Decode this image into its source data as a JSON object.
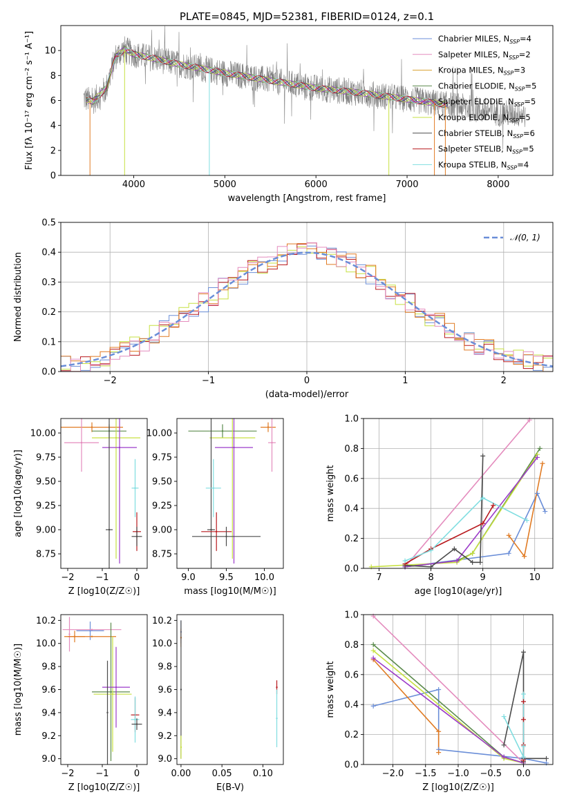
{
  "figure_title": "PLATE=0845, MJD=52381, FIBERID=0124, z=0.1",
  "colors": {
    "Chabrier MILES": "#6a8ed8",
    "Salpeter MILES": "#e48bbd",
    "Kroupa MILES": "#d9a12b",
    "Chabrier ELODIE": "#5b8a4c",
    "Salpeter ELODIE": "#9b3ac9",
    "Kroupa ELODIE": "#c6e040",
    "Chabrier STELIB": "#4a4a4a",
    "Salpeter STELIB": "#b8191d",
    "Kroupa STELIB": "#7fdde0",
    "data": "#808080",
    "orange": "#e07a22",
    "normal": "#6a8ed8"
  },
  "chart_data": [
    {
      "id": "spectrum",
      "type": "line",
      "title": "PLATE=0845, MJD=52381, FIBERID=0124, z=0.1",
      "xlabel": "wavelength [Angstrom, rest frame]",
      "ylabel": "Flux [fλ 10⁻¹⁷ erg cm⁻² s⁻¹ A⁻¹]",
      "xlim": [
        3200,
        8600
      ],
      "ylim": [
        0,
        12
      ],
      "xticks": [
        4000,
        5000,
        6000,
        7000,
        8000
      ],
      "yticks": [
        0,
        2,
        4,
        6,
        8,
        10
      ],
      "legend_position": "top-right",
      "legend": [
        {
          "label": "Chabrier MILES, N",
          "sub": "SSP",
          "tail": "=4",
          "color": "Chabrier MILES"
        },
        {
          "label": "Salpeter MILES, N",
          "sub": "SSP",
          "tail": "=2",
          "color": "Salpeter MILES"
        },
        {
          "label": "Kroupa MILES, N",
          "sub": "SSP",
          "tail": "=3",
          "color": "Kroupa MILES"
        },
        {
          "label": "Chabrier ELODIE, N",
          "sub": "SSP",
          "tail": "=5",
          "color": "Chabrier ELODIE"
        },
        {
          "label": "Salpeter ELODIE, N",
          "sub": "SSP",
          "tail": "=5",
          "color": "Salpeter ELODIE"
        },
        {
          "label": "Kroupa ELODIE, N",
          "sub": "SSP",
          "tail": "=5",
          "color": "Kroupa ELODIE"
        },
        {
          "label": "Chabrier STELIB, N",
          "sub": "SSP",
          "tail": "=6",
          "color": "Chabrier STELIB"
        },
        {
          "label": "Salpeter STELIB, N",
          "sub": "SSP",
          "tail": "=5",
          "color": "Salpeter STELIB"
        },
        {
          "label": "Kroupa STELIB, N",
          "sub": "SSP",
          "tail": "=4",
          "color": "Kroupa STELIB"
        }
      ],
      "continuum": {
        "x": [
          3450,
          3550,
          3700,
          3800,
          3900,
          4000,
          4200,
          4500,
          5000,
          5500,
          6000,
          6500,
          7000,
          7500,
          8000,
          8300
        ],
        "y": [
          6.2,
          5.9,
          7.0,
          9.5,
          10.1,
          9.7,
          9.4,
          8.9,
          8.2,
          7.6,
          7.0,
          6.6,
          6.1,
          5.6,
          5.0,
          4.9
        ]
      },
      "data_range": [
        3450,
        8300
      ],
      "data_noise": 2.2,
      "model_range": [
        3480,
        7450
      ],
      "dips": [
        {
          "x": 3520,
          "color": "orange"
        },
        {
          "x": 3900,
          "color": "Kroupa ELODIE"
        },
        {
          "x": 4830,
          "color": "Kroupa STELIB"
        },
        {
          "x": 6800,
          "color": "Kroupa ELODIE"
        },
        {
          "x": 7300,
          "color": "orange"
        },
        {
          "x": 7420,
          "color": "orange"
        }
      ]
    },
    {
      "id": "residuals",
      "type": "bar",
      "xlabel": "(data-model)/error",
      "ylabel": "Normed distribution",
      "xlim": [
        -2.5,
        2.5
      ],
      "ylim": [
        0,
        0.5
      ],
      "xticks": [
        -2,
        -1,
        0,
        1,
        2
      ],
      "yticks": [
        0.0,
        0.1,
        0.2,
        0.3,
        0.4,
        0.5
      ],
      "bin_width": 0.1,
      "legend_position": "top-right",
      "legend": "𝒩(0, 1)",
      "histograms": [
        "Chabrier MILES",
        "Kroupa ELODIE",
        "Salpeter STELIB",
        "orange",
        "Salpeter MILES"
      ],
      "normal_mean": 0,
      "normal_sigma": 1
    },
    {
      "id": "age_vs_Z",
      "type": "scatter",
      "xlabel": "Z [log10(Z/Z☉)]",
      "ylabel": "age  [log10(age/yr)]",
      "xlim": [
        -2.2,
        0.3
      ],
      "ylim": [
        8.6,
        10.15
      ],
      "xticks": [
        -2,
        -1,
        0
      ],
      "yticks": [
        8.75,
        9.0,
        9.25,
        9.5,
        9.75,
        10.0
      ],
      "points": [
        {
          "x": -1.3,
          "y": 10.06,
          "xerr": 0.9,
          "yerr": 0.05,
          "color": "orange"
        },
        {
          "x": -1.6,
          "y": 9.9,
          "xerr": 0.5,
          "yerr": 0.3,
          "color": "Salpeter MILES"
        },
        {
          "x": -0.8,
          "y": 10.02,
          "xerr": 0.5,
          "yerr": 0.07,
          "color": "Chabrier ELODIE"
        },
        {
          "x": -0.6,
          "y": 9.95,
          "xerr": 0.7,
          "yerr": 1.25,
          "color": "Kroupa ELODIE"
        },
        {
          "x": -0.5,
          "y": 9.85,
          "xerr": 0.5,
          "yerr": 1.2,
          "color": "Salpeter ELODIE"
        },
        {
          "x": -0.8,
          "y": 9.0,
          "xerr": 0.1,
          "yerr": 1.2,
          "color": "Chabrier STELIB"
        },
        {
          "x": 0.0,
          "y": 8.98,
          "xerr": 0.12,
          "yerr": 0.2,
          "color": "Salpeter STELIB"
        },
        {
          "x": -0.05,
          "y": 9.43,
          "xerr": 0.1,
          "yerr": 0.3,
          "color": "Kroupa STELIB"
        },
        {
          "x": 0.0,
          "y": 8.93,
          "xerr": 0.15,
          "yerr": 0.1,
          "color": "Chabrier STELIB"
        }
      ]
    },
    {
      "id": "age_vs_mass",
      "type": "scatter",
      "xlabel": "mass [log10(M/M☉)]",
      "ylabel": "",
      "xlim": [
        8.85,
        10.25
      ],
      "ylim": [
        8.6,
        10.15
      ],
      "xticks": [
        9.0,
        9.5,
        10.0
      ],
      "yticks": [
        8.75,
        9.0,
        9.25,
        9.5,
        9.75,
        10.0
      ],
      "points": [
        {
          "x": 10.05,
          "y": 10.06,
          "xerr": 0.1,
          "yerr": 0.05,
          "color": "orange"
        },
        {
          "x": 10.1,
          "y": 9.9,
          "xerr": 0.05,
          "yerr": 0.3,
          "color": "Salpeter MILES"
        },
        {
          "x": 9.45,
          "y": 10.02,
          "xerr": 0.45,
          "yerr": 0.07,
          "color": "Chabrier ELODIE"
        },
        {
          "x": 9.58,
          "y": 9.95,
          "xerr": 0.3,
          "yerr": 1.25,
          "color": "Kroupa ELODIE"
        },
        {
          "x": 9.6,
          "y": 9.85,
          "xerr": 0.25,
          "yerr": 1.2,
          "color": "Salpeter ELODIE"
        },
        {
          "x": 9.3,
          "y": 9.0,
          "xerr": 0.05,
          "yerr": 1.2,
          "color": "Chabrier STELIB"
        },
        {
          "x": 9.37,
          "y": 8.98,
          "xerr": 0.2,
          "yerr": 0.2,
          "color": "Salpeter STELIB"
        },
        {
          "x": 9.33,
          "y": 9.43,
          "xerr": 0.1,
          "yerr": 0.3,
          "color": "Kroupa STELIB"
        },
        {
          "x": 9.5,
          "y": 8.93,
          "xerr": 0.45,
          "yerr": 0.1,
          "color": "Chabrier STELIB"
        }
      ]
    },
    {
      "id": "mass_weight_vs_age",
      "type": "line",
      "xlabel": "age  [log10(age/yr)]",
      "ylabel": "mass weight",
      "xlim": [
        6.7,
        10.35
      ],
      "ylim": [
        0,
        1.0
      ],
      "xticks": [
        7,
        8,
        9,
        10
      ],
      "yticks": [
        0.0,
        0.2,
        0.4,
        0.6,
        0.8,
        1.0
      ],
      "series": [
        {
          "color": "Chabrier MILES",
          "x": [
            7.5,
            9.5,
            10.05,
            10.2
          ],
          "y": [
            0.01,
            0.1,
            0.5,
            0.38
          ]
        },
        {
          "color": "Salpeter MILES",
          "x": [
            7.5,
            9.9
          ],
          "y": [
            0.01,
            0.99
          ]
        },
        {
          "color": "orange",
          "x": [
            9.5,
            9.8,
            10.15
          ],
          "y": [
            0.22,
            0.08,
            0.7
          ]
        },
        {
          "color": "Chabrier ELODIE",
          "x": [
            7.5,
            8.5,
            8.8,
            10.1
          ],
          "y": [
            0.01,
            0.05,
            0.1,
            0.8
          ]
        },
        {
          "color": "Kroupa ELODIE",
          "x": [
            6.85,
            8.5,
            8.8,
            10.05
          ],
          "y": [
            0.01,
            0.04,
            0.1,
            0.76
          ]
        },
        {
          "color": "Salpeter ELODIE",
          "x": [
            7.5,
            8.5,
            10.05
          ],
          "y": [
            0.01,
            0.05,
            0.74
          ]
        },
        {
          "color": "Chabrier STELIB",
          "x": [
            7.5,
            8.0,
            8.45,
            8.8,
            8.95,
            9.0
          ],
          "y": [
            0.02,
            0.01,
            0.13,
            0.04,
            0.04,
            0.75
          ]
        },
        {
          "color": "Salpeter STELIB",
          "x": [
            7.5,
            8.0,
            9.0,
            9.2
          ],
          "y": [
            0.03,
            0.13,
            0.3,
            0.42
          ]
        },
        {
          "color": "Kroupa STELIB",
          "x": [
            7.5,
            8.0,
            9.0,
            9.85
          ],
          "y": [
            0.05,
            0.12,
            0.47,
            0.32
          ]
        }
      ]
    },
    {
      "id": "mass_vs_Z",
      "type": "scatter",
      "xlabel": "Z [log10(Z/Z☉)]",
      "ylabel": "mass [log10(M/M☉)]",
      "xlim": [
        -2.2,
        0.3
      ],
      "ylim": [
        8.95,
        10.25
      ],
      "xticks": [
        -2,
        -1,
        0
      ],
      "yticks": [
        9.0,
        9.2,
        9.4,
        9.6,
        9.8,
        10.0,
        10.2
      ],
      "points": [
        {
          "x": -1.35,
          "y": 10.11,
          "xerr": 0.4,
          "yerr": 0.08,
          "color": "Chabrier MILES"
        },
        {
          "x": -1.3,
          "y": 10.12,
          "xerr": 0.85,
          "yerr": 0.0,
          "color": "Salpeter MILES"
        },
        {
          "x": -1.95,
          "y": 10.08,
          "xerr": 0.0,
          "yerr": 0.15,
          "color": "Salpeter MILES"
        },
        {
          "x": -1.8,
          "y": 10.06,
          "xerr": 0.3,
          "yerr": 0.05,
          "color": "orange"
        },
        {
          "x": -1.3,
          "y": 10.06,
          "xerr": 0.7,
          "yerr": 0.0,
          "color": "orange"
        },
        {
          "x": -0.75,
          "y": 9.58,
          "xerr": 0.55,
          "yerr": 0.6,
          "color": "Chabrier ELODIE"
        },
        {
          "x": -0.7,
          "y": 9.56,
          "xerr": 0.55,
          "yerr": 0.5,
          "color": "Kroupa ELODIE"
        },
        {
          "x": -0.6,
          "y": 9.62,
          "xerr": 0.4,
          "yerr": 0.35,
          "color": "Salpeter ELODIE"
        },
        {
          "x": -0.85,
          "y": 9.4,
          "xerr": 0.0,
          "yerr": 0.45,
          "color": "Chabrier STELIB"
        },
        {
          "x": -0.05,
          "y": 9.38,
          "xerr": 0.12,
          "yerr": 0.15,
          "color": "Salpeter STELIB"
        },
        {
          "x": -0.05,
          "y": 9.34,
          "xerr": 0.12,
          "yerr": 0.2,
          "color": "Kroupa STELIB"
        },
        {
          "x": 0.0,
          "y": 9.3,
          "xerr": 0.15,
          "yerr": 0.05,
          "color": "Chabrier STELIB"
        }
      ]
    },
    {
      "id": "mass_vs_EBV",
      "type": "scatter",
      "xlabel": "E(B-V)",
      "ylabel": "",
      "xlim": [
        -0.005,
        0.125
      ],
      "ylim": [
        8.95,
        10.25
      ],
      "xticks": [
        0.0,
        0.05,
        0.1
      ],
      "xtick_labels": [
        "0.00",
        "0.05",
        "0.10"
      ],
      "yticks": [
        9.0,
        9.2,
        9.4,
        9.6,
        9.8,
        10.0,
        10.2
      ],
      "points": [
        {
          "x": 0.0,
          "y": 10.1,
          "xerr": 0.0,
          "yerr": 0.1,
          "color": "Chabrier MILES"
        },
        {
          "x": 0.0,
          "y": 10.05,
          "xerr": 0.0,
          "yerr": 0.08,
          "color": "orange"
        },
        {
          "x": 0.0,
          "y": 9.6,
          "xerr": 0.0,
          "yerr": 0.6,
          "color": "Chabrier STELIB"
        },
        {
          "x": 0.0,
          "y": 9.1,
          "xerr": 0.0,
          "yerr": 0.1,
          "color": "Kroupa ELODIE"
        },
        {
          "x": 0.117,
          "y": 9.62,
          "xerr": 0.0,
          "yerr": 0.06,
          "color": "Salpeter STELIB"
        },
        {
          "x": 0.117,
          "y": 9.35,
          "xerr": 0.0,
          "yerr": 0.25,
          "color": "Kroupa STELIB"
        }
      ]
    },
    {
      "id": "mass_weight_vs_Z",
      "type": "line",
      "xlabel": "Z [log10(Z/Z☉)]",
      "ylabel": "mass weight",
      "xlim": [
        -2.45,
        0.45
      ],
      "ylim": [
        0,
        1.0
      ],
      "xticks": [
        -2.0,
        -1.5,
        -1.0,
        -0.5,
        0.0
      ],
      "xtick_labels": [
        "−2.0",
        "−1.5",
        "−1.0",
        "−0.5",
        "0.0"
      ],
      "yticks": [
        0.0,
        0.2,
        0.4,
        0.6,
        0.8,
        1.0
      ],
      "series": [
        {
          "color": "Chabrier MILES",
          "x": [
            -2.3,
            -1.3,
            -1.3,
            0.0,
            0.35
          ],
          "y": [
            0.39,
            0.5,
            0.1,
            0.04,
            0.01
          ]
        },
        {
          "color": "Salpeter MILES",
          "x": [
            -2.3,
            0.0
          ],
          "y": [
            0.99,
            0.01
          ]
        },
        {
          "color": "orange",
          "x": [
            -2.3,
            -1.3,
            -1.3
          ],
          "y": [
            0.7,
            0.22,
            0.08
          ]
        },
        {
          "color": "Chabrier ELODIE",
          "x": [
            -2.3,
            -0.3,
            0.0
          ],
          "y": [
            0.8,
            0.05,
            0.01
          ]
        },
        {
          "color": "Kroupa ELODIE",
          "x": [
            -2.3,
            -0.3,
            0.0
          ],
          "y": [
            0.76,
            0.04,
            0.01
          ]
        },
        {
          "color": "Salpeter ELODIE",
          "x": [
            -2.3,
            -0.3,
            0.0
          ],
          "y": [
            0.71,
            0.05,
            0.01
          ]
        },
        {
          "color": "Chabrier STELIB",
          "x": [
            -0.3,
            0.0,
            0.0,
            0.0,
            0.35
          ],
          "y": [
            0.13,
            0.75,
            0.02,
            0.04,
            0.04
          ]
        },
        {
          "color": "Salpeter STELIB",
          "x": [
            0.0,
            0.0,
            0.0,
            0.0
          ],
          "y": [
            0.42,
            0.3,
            0.13,
            0.03
          ]
        },
        {
          "color": "Kroupa STELIB",
          "x": [
            -0.3,
            0.0,
            0.0,
            0.0
          ],
          "y": [
            0.32,
            0.05,
            0.47,
            0.12
          ]
        }
      ]
    }
  ]
}
